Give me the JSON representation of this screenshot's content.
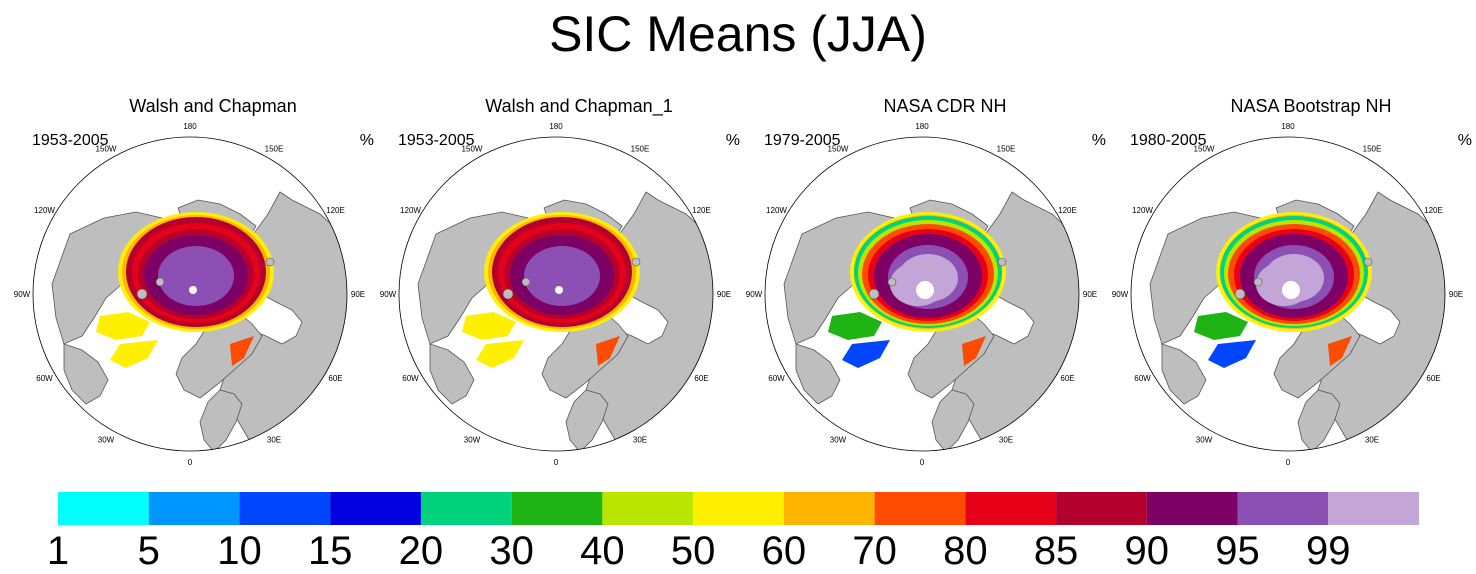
{
  "chart_data": {
    "type": "heatmap",
    "title": "SIC Means (JJA)",
    "projection": "north polar stereographic",
    "panels": [
      {
        "title": "Walsh and Chapman",
        "period": "1953-2005",
        "unit": "%",
        "pole_hole": "small"
      },
      {
        "title": "Walsh and Chapman_1",
        "period": "1953-2005",
        "unit": "%",
        "pole_hole": "small"
      },
      {
        "title": "NASA CDR NH",
        "period": "1979-2005",
        "unit": "%",
        "pole_hole": "large"
      },
      {
        "title": "NASA Bootstrap NH",
        "period": "1980-2005",
        "unit": "%",
        "pole_hole": "large"
      }
    ],
    "longitude_labels": [
      "180",
      "150E",
      "120E",
      "90E",
      "60E",
      "30E",
      "0",
      "30W",
      "60W",
      "90W",
      "120W",
      "150W"
    ],
    "colorbar": {
      "levels": [
        "1",
        "5",
        "10",
        "15",
        "20",
        "30",
        "40",
        "50",
        "60",
        "70",
        "80",
        "85",
        "90",
        "95",
        "99"
      ],
      "colors": [
        "#00ffff",
        "#0096ff",
        "#0046ff",
        "#0000e0",
        "#00d27d",
        "#1eb414",
        "#b9e600",
        "#ffef00",
        "#ffb400",
        "#ff4b00",
        "#e60018",
        "#b4002d",
        "#7d0064",
        "#8c50b4",
        "#c3a5d7"
      ]
    }
  },
  "colors": {
    "land": "#bebebe",
    "ocean": "#ffffff",
    "coast": "#555555"
  }
}
